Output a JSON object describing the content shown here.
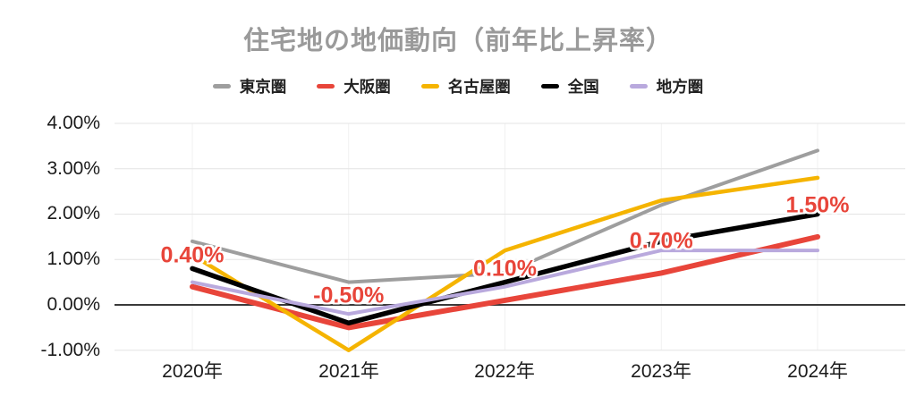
{
  "chart_data": {
    "type": "line",
    "title": "住宅地の地価動向（前年比上昇率）",
    "xlabel": "",
    "ylabel": "",
    "categories": [
      "2020年",
      "2021年",
      "2022年",
      "2023年",
      "2024年"
    ],
    "y_tick_labels": [
      "4.00%",
      "3.00%",
      "2.00%",
      "1.00%",
      "0.00%",
      "-1.00%"
    ],
    "y_tick_values": [
      4,
      3,
      2,
      1,
      0,
      -1
    ],
    "ylim": [
      -1,
      4
    ],
    "grid": "horizontal-light-with-dark-zero-line",
    "legend_position": "top-center",
    "series": [
      {
        "key": "tokyo",
        "name": "東京圏",
        "color": "#9E9E9E",
        "values": [
          1.4,
          0.5,
          0.7,
          2.2,
          3.4
        ]
      },
      {
        "key": "osaka",
        "name": "大阪圏",
        "color": "#E8453A",
        "values": [
          0.4,
          -0.5,
          0.1,
          0.7,
          1.5
        ],
        "point_labels": [
          "0.40%",
          "-0.50%",
          "0.10%",
          "0.70%",
          "1.50%"
        ],
        "label_color": "#E8453A"
      },
      {
        "key": "nagoya",
        "name": "名古屋圏",
        "color": "#F5B400",
        "values": [
          1.1,
          -1.0,
          1.2,
          2.3,
          2.8
        ]
      },
      {
        "key": "national",
        "name": "全国",
        "color": "#000000",
        "values": [
          0.8,
          -0.4,
          0.5,
          1.4,
          2.0
        ]
      },
      {
        "key": "regional",
        "name": "地方圏",
        "color": "#B9A9DD",
        "values": [
          0.5,
          -0.2,
          0.4,
          1.2,
          1.2
        ]
      }
    ],
    "colors": {
      "title_text": "#9A9A9A",
      "legend_text": "#212121",
      "axis_text": "#1B1B1B",
      "gridline": "#E4E4E4",
      "zero_line": "#3A3A3A",
      "data_label": "#E8453A"
    }
  }
}
